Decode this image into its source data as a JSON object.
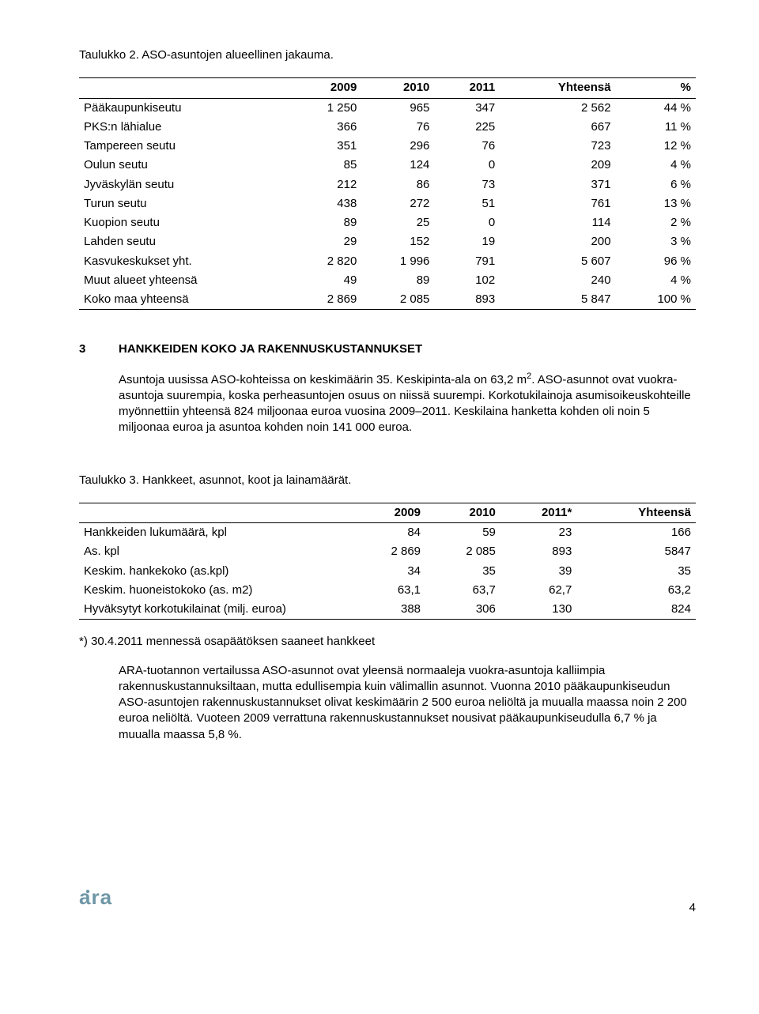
{
  "table1": {
    "caption": "Taulukko 2. ASO-asuntojen alueellinen jakauma.",
    "headers": [
      "",
      "2009",
      "2010",
      "2011",
      "Yhteensä",
      "%"
    ],
    "rows": [
      [
        "Pääkaupunkiseutu",
        "1 250",
        "965",
        "347",
        "2 562",
        "44 %"
      ],
      [
        "PKS:n lähialue",
        "366",
        "76",
        "225",
        "667",
        "11 %"
      ],
      [
        "Tampereen seutu",
        "351",
        "296",
        "76",
        "723",
        "12 %"
      ],
      [
        "Oulun seutu",
        "85",
        "124",
        "0",
        "209",
        "4 %"
      ],
      [
        "Jyväskylän seutu",
        "212",
        "86",
        "73",
        "371",
        "6 %"
      ],
      [
        "Turun seutu",
        "438",
        "272",
        "51",
        "761",
        "13 %"
      ],
      [
        "Kuopion seutu",
        "89",
        "25",
        "0",
        "114",
        "2 %"
      ],
      [
        "Lahden seutu",
        "29",
        "152",
        "19",
        "200",
        "3 %"
      ],
      [
        "Kasvukeskukset yht.",
        "2 820",
        "1 996",
        "791",
        "5 607",
        "96 %"
      ],
      [
        "Muut alueet yhteensä",
        "49",
        "89",
        "102",
        "240",
        "4 %"
      ],
      [
        "Koko maa yhteensä",
        "2 869",
        "2 085",
        "893",
        "5 847",
        "100 %"
      ]
    ]
  },
  "section3": {
    "num": "3",
    "title": "HANKKEIDEN KOKO JA RAKENNUSKUSTANNUKSET",
    "p1a": "Asuntoja uusissa ASO-kohteissa on keskimäärin 35. Keskipinta-ala on 63,2 m",
    "p1b": ". ASO-asunnot ovat vuokra-asuntoja suurempia, koska perheasuntojen osuus on niissä suurempi. Korkotukilainoja asumisoikeuskohteille myönnettiin yhteensä 824 miljoonaa euroa vuosina 2009–2011. Keskilaina hanketta kohden oli noin 5 miljoonaa euroa ja asuntoa kohden noin 141 000 euroa."
  },
  "table2": {
    "caption": "Taulukko 3. Hankkeet, asunnot, koot ja lainamäärät.",
    "headers": [
      "",
      "2009",
      "2010",
      "2011*",
      "Yhteensä"
    ],
    "rows": [
      [
        "Hankkeiden lukumäärä, kpl",
        "84",
        "59",
        "23",
        "166"
      ],
      [
        "As. kpl",
        "2 869",
        "2 085",
        "893",
        "5847"
      ],
      [
        "Keskim. hankekoko (as.kpl)",
        "34",
        "35",
        "39",
        "35"
      ],
      [
        "Keskim. huoneistokoko (as. m2)",
        "63,1",
        "63,7",
        "62,7",
        "63,2"
      ],
      [
        "Hyväksytyt korkotukilainat (milj. euroa)",
        "388",
        "306",
        "130",
        "824"
      ]
    ],
    "note": "*) 30.4.2011 mennessä osapäätöksen saaneet hankkeet"
  },
  "para4": "ARA-tuotannon vertailussa ASO-asunnot ovat yleensä normaaleja vuokra-asuntoja kalliimpia rakennuskustannuksiltaan, mutta edullisempia kuin välimallin asunnot. Vuonna 2010 pääkaupunkiseudun ASO-asuntojen rakennuskustannukset olivat keskimäärin 2 500 euroa neliöltä ja muualla maassa noin 2 200 euroa neliöltä. Vuoteen 2009 verrattuna rakennuskustannukset nousivat pääkaupunkiseudulla 6,7 % ja muualla maassa 5,8 %.",
  "footer": {
    "logo": "ara",
    "page": "4"
  }
}
